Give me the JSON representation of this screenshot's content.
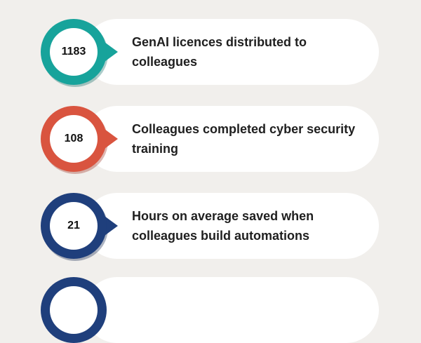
{
  "stats": [
    {
      "value": "1183",
      "label": "GenAI licences distributed to colleagues",
      "color": "#17a39b",
      "shadow": "#0d6d67"
    },
    {
      "value": "108",
      "label": "Colleagues completed cyber security training",
      "color": "#d9543f",
      "shadow": "#9e3526"
    },
    {
      "value": "21",
      "label": "Hours on average saved when colleagues build automations",
      "color": "#1f3f7c",
      "shadow": "#132751"
    },
    {
      "value": "",
      "label": "",
      "color": "#1f3f7c",
      "shadow": "#132751"
    }
  ]
}
